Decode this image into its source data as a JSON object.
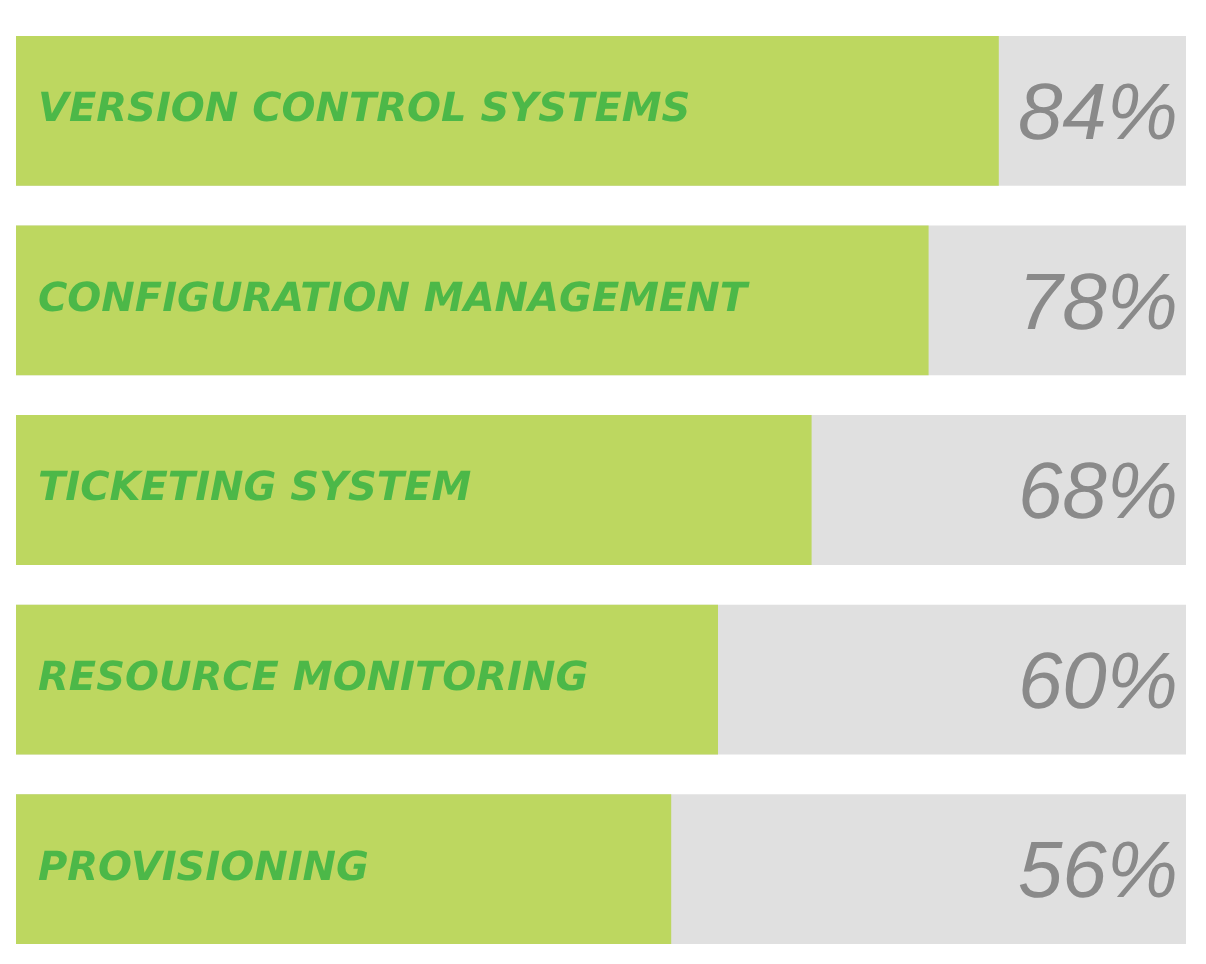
{
  "chart_data": {
    "type": "bar",
    "orientation": "horizontal",
    "categories": [
      "VERSION CONTROL SYSTEMS",
      "CONFIGURATION MANAGEMENT",
      "TICKETING SYSTEM",
      "RESOURCE MONITORING",
      "PROVISIONING"
    ],
    "values": [
      84,
      78,
      68,
      60,
      56
    ],
    "color": "#bdd760",
    "xlim": [
      0,
      100
    ],
    "tick_labels": false,
    "legend": false,
    "value_labels": [
      "84%",
      "78%",
      "68%",
      "60%",
      "56%"
    ]
  }
}
